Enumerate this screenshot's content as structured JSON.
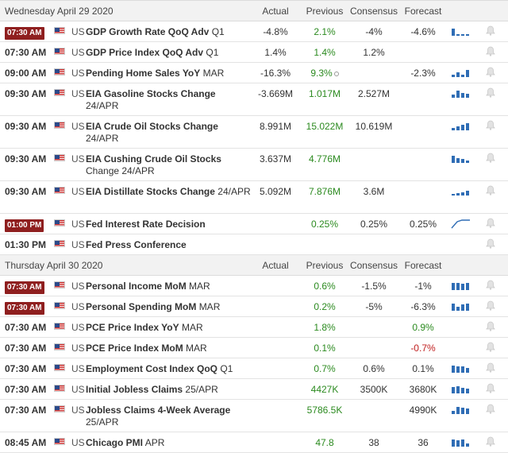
{
  "columns": {
    "actual": "Actual",
    "previous": "Previous",
    "consensus": "Consensus",
    "forecast": "Forecast"
  },
  "days": [
    {
      "label": "Wednesday April 29 2020",
      "events": [
        {
          "time": "07:30 AM",
          "highlight": true,
          "country": "US",
          "name": "GDP Growth Rate QoQ Adv",
          "period": "Q1",
          "actual": "-4.8%",
          "previous": "2.1%",
          "prev_color": "green",
          "consensus": "-4%",
          "forecast": "-4.6%",
          "fc_color": "",
          "spark": "bars1",
          "info": false,
          "lines": 1
        },
        {
          "time": "07:30 AM",
          "highlight": false,
          "country": "US",
          "name": "GDP Price Index QoQ Adv",
          "period": "Q1",
          "actual": "1.4%",
          "previous": "1.4%",
          "prev_color": "green",
          "consensus": "1.2%",
          "forecast": "",
          "fc_color": "",
          "spark": "",
          "info": false,
          "lines": 1
        },
        {
          "time": "09:00 AM",
          "highlight": false,
          "country": "US",
          "name": "Pending Home Sales YoY",
          "period": "MAR",
          "actual": "-16.3%",
          "previous": "9.3%",
          "prev_color": "green",
          "consensus": "",
          "forecast": "-2.3%",
          "fc_color": "",
          "spark": "bars2",
          "info": true,
          "lines": 1
        },
        {
          "time": "09:30 AM",
          "highlight": false,
          "country": "US",
          "name": "EIA Gasoline Stocks Change",
          "period": "24/APR",
          "actual": "-3.669M",
          "previous": "1.017M",
          "prev_color": "green",
          "consensus": "2.527M",
          "forecast": "",
          "fc_color": "",
          "spark": "bars3",
          "info": false,
          "lines": 2
        },
        {
          "time": "09:30 AM",
          "highlight": false,
          "country": "US",
          "name": "EIA Crude Oil Stocks Change",
          "period": "24/APR",
          "actual": "8.991M",
          "previous": "15.022M",
          "prev_color": "green",
          "consensus": "10.619M",
          "forecast": "",
          "fc_color": "",
          "spark": "bars4",
          "info": false,
          "lines": 2
        },
        {
          "time": "09:30 AM",
          "highlight": false,
          "country": "US",
          "name": "EIA Cushing Crude Oil Stocks",
          "period": "Change 24/APR",
          "actual": "3.637M",
          "previous": "4.776M",
          "prev_color": "green",
          "consensus": "",
          "forecast": "",
          "fc_color": "",
          "spark": "bars5",
          "info": false,
          "lines": 2
        },
        {
          "time": "09:30 AM",
          "highlight": false,
          "country": "US",
          "name": "EIA Distillate Stocks Change",
          "period": "24/APR",
          "actual": "5.092M",
          "previous": "7.876M",
          "prev_color": "green",
          "consensus": "3.6M",
          "forecast": "",
          "fc_color": "",
          "spark": "bars6",
          "info": false,
          "lines": 2
        },
        {
          "time": "01:00 PM",
          "highlight": true,
          "country": "US",
          "name": "Fed Interest Rate Decision",
          "period": "",
          "actual": "",
          "previous": "0.25%",
          "prev_color": "green",
          "consensus": "0.25%",
          "forecast": "0.25%",
          "fc_color": "",
          "spark": "line",
          "info": false,
          "lines": 1
        },
        {
          "time": "01:30 PM",
          "highlight": false,
          "country": "US",
          "name": "Fed Press Conference",
          "period": "",
          "actual": "",
          "previous": "",
          "prev_color": "",
          "consensus": "",
          "forecast": "",
          "fc_color": "",
          "spark": "",
          "info": false,
          "lines": 1
        }
      ]
    },
    {
      "label": "Thursday April 30 2020",
      "events": [
        {
          "time": "07:30 AM",
          "highlight": true,
          "country": "US",
          "name": "Personal Income MoM",
          "period": "MAR",
          "actual": "",
          "previous": "0.6%",
          "prev_color": "green",
          "consensus": "-1.5%",
          "forecast": "-1%",
          "fc_color": "",
          "spark": "bars7",
          "info": false,
          "lines": 1
        },
        {
          "time": "07:30 AM",
          "highlight": true,
          "country": "US",
          "name": "Personal Spending MoM",
          "period": "MAR",
          "actual": "",
          "previous": "0.2%",
          "prev_color": "green",
          "consensus": "-5%",
          "forecast": "-6.3%",
          "fc_color": "",
          "spark": "bars8",
          "info": false,
          "lines": 1
        },
        {
          "time": "07:30 AM",
          "highlight": false,
          "country": "US",
          "name": "PCE Price Index YoY",
          "period": "MAR",
          "actual": "",
          "previous": "1.8%",
          "prev_color": "green",
          "consensus": "",
          "forecast": "0.9%",
          "fc_color": "green",
          "spark": "",
          "info": false,
          "lines": 1
        },
        {
          "time": "07:30 AM",
          "highlight": false,
          "country": "US",
          "name": "PCE Price Index MoM",
          "period": "MAR",
          "actual": "",
          "previous": "0.1%",
          "prev_color": "green",
          "consensus": "",
          "forecast": "-0.7%",
          "fc_color": "red",
          "spark": "",
          "info": false,
          "lines": 1
        },
        {
          "time": "07:30 AM",
          "highlight": false,
          "country": "US",
          "name": "Employment Cost Index QoQ",
          "period": "Q1",
          "actual": "",
          "previous": "0.7%",
          "prev_color": "green",
          "consensus": "0.6%",
          "forecast": "0.1%",
          "fc_color": "",
          "spark": "bars9",
          "info": false,
          "lines": 1
        },
        {
          "time": "07:30 AM",
          "highlight": false,
          "country": "US",
          "name": "Initial Jobless Claims",
          "period": "25/APR",
          "actual": "",
          "previous": "4427K",
          "prev_color": "green",
          "consensus": "3500K",
          "forecast": "3680K",
          "fc_color": "",
          "spark": "bars10",
          "info": false,
          "lines": 1
        },
        {
          "time": "07:30 AM",
          "highlight": false,
          "country": "US",
          "name": "Jobless Claims 4-Week Average",
          "period": "25/APR",
          "actual": "",
          "previous": "5786.5K",
          "prev_color": "green",
          "consensus": "",
          "forecast": "4990K",
          "fc_color": "",
          "spark": "bars11",
          "info": false,
          "lines": 2
        },
        {
          "time": "08:45 AM",
          "highlight": false,
          "country": "US",
          "name": "Chicago PMI",
          "period": "APR",
          "actual": "",
          "previous": "47.8",
          "prev_color": "green",
          "consensus": "38",
          "forecast": "36",
          "fc_color": "",
          "spark": "bars12",
          "info": false,
          "lines": 1
        }
      ]
    }
  ],
  "colors": {
    "badge": "#8f1f1f",
    "green": "#2b8a1f",
    "red": "#c02020",
    "spark": "#2f6db5",
    "header_bg": "#f2f2f2"
  },
  "icons": {
    "flag": "us-flag-icon",
    "alert": "bell-icon",
    "info": "info-icon"
  }
}
